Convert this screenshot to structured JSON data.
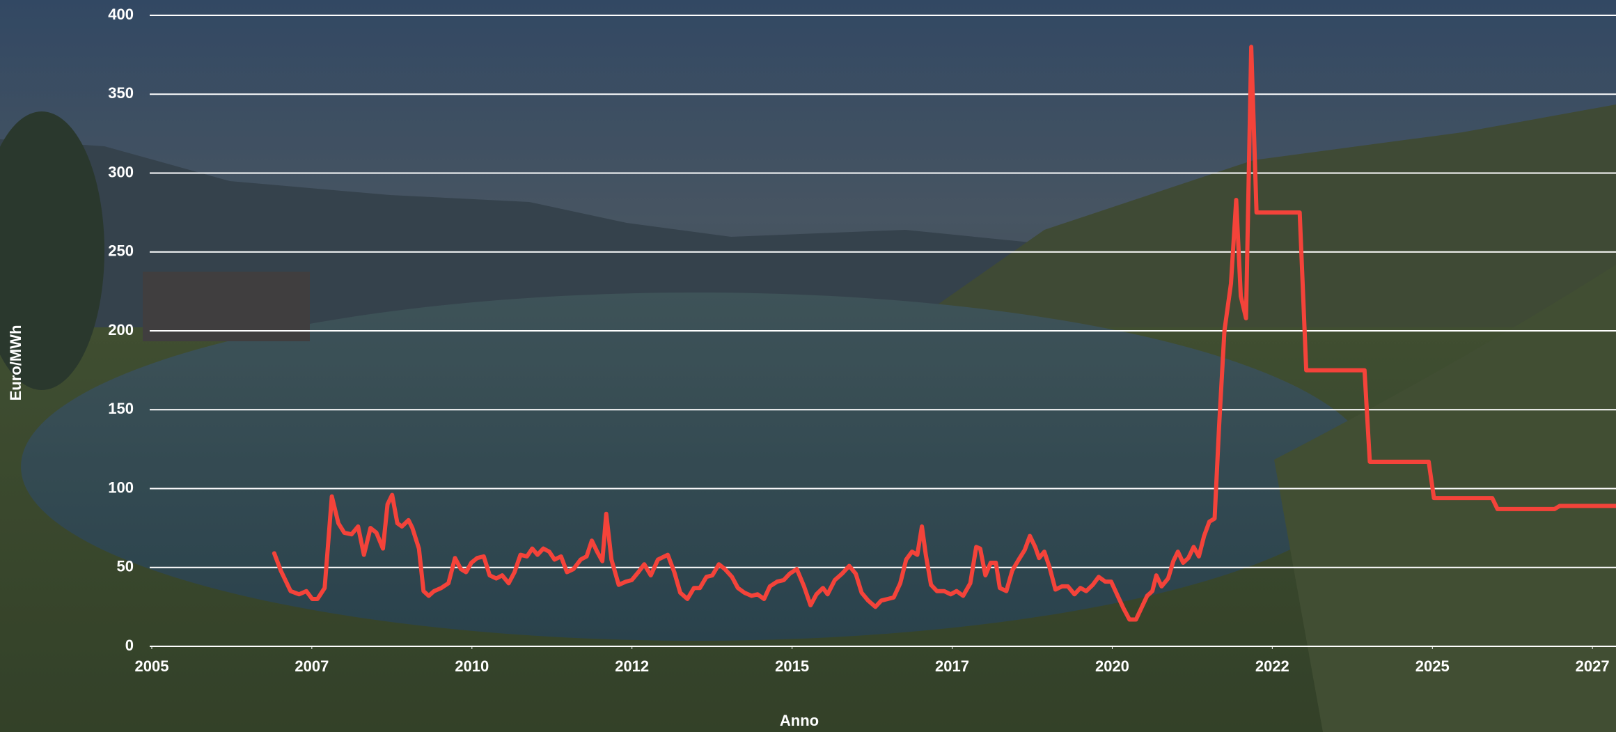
{
  "chart_data": {
    "type": "line",
    "x_label": "Anno",
    "y_label": "Euro/MWh",
    "color": "#f4433a",
    "grid": true,
    "xlim": [
      2005,
      2027.36
    ],
    "xticks": [
      {
        "value": 2005,
        "label": "2005"
      },
      {
        "value": 2007.444,
        "label": "2007"
      },
      {
        "value": 2009.889,
        "label": "2010"
      },
      {
        "value": 2012.333,
        "label": "2012"
      },
      {
        "value": 2014.778,
        "label": "2015"
      },
      {
        "value": 2017.222,
        "label": "2017"
      },
      {
        "value": 2019.667,
        "label": "2020"
      },
      {
        "value": 2022.111,
        "label": "2022"
      },
      {
        "value": 2024.556,
        "label": "2025"
      },
      {
        "value": 2027,
        "label": "2027"
      }
    ],
    "ylim": [
      0,
      400
    ],
    "yticks": [
      0,
      50,
      100,
      150,
      200,
      250,
      300,
      350,
      400
    ],
    "x": [
      2006.87,
      2006.97,
      2007.12,
      2007.25,
      2007.36,
      2007.45,
      2007.53,
      2007.64,
      2007.75,
      2007.85,
      2007.94,
      2008.05,
      2008.15,
      2008.24,
      2008.34,
      2008.43,
      2008.53,
      2008.6,
      2008.67,
      2008.75,
      2008.82,
      2008.92,
      2008.98,
      2009.08,
      2009.15,
      2009.23,
      2009.31,
      2009.42,
      2009.53,
      2009.63,
      2009.72,
      2009.8,
      2009.88,
      2009.97,
      2010.07,
      2010.16,
      2010.26,
      2010.35,
      2010.45,
      2010.54,
      2010.63,
      2010.73,
      2010.81,
      2010.89,
      2010.98,
      2011.07,
      2011.15,
      2011.25,
      2011.34,
      2011.44,
      2011.55,
      2011.64,
      2011.72,
      2011.8,
      2011.88,
      2011.94,
      2012.02,
      2012.13,
      2012.24,
      2012.33,
      2012.43,
      2012.52,
      2012.62,
      2012.73,
      2012.88,
      2012.98,
      2013.07,
      2013.18,
      2013.28,
      2013.37,
      2013.47,
      2013.56,
      2013.66,
      2013.75,
      2013.86,
      2013.95,
      2014.05,
      2014.16,
      2014.25,
      2014.35,
      2014.44,
      2014.55,
      2014.65,
      2014.74,
      2014.85,
      2014.96,
      2015.06,
      2015.15,
      2015.25,
      2015.32,
      2015.43,
      2015.54,
      2015.65,
      2015.75,
      2015.84,
      2015.94,
      2016.05,
      2016.14,
      2016.24,
      2016.33,
      2016.43,
      2016.52,
      2016.61,
      2016.69,
      2016.76,
      2016.82,
      2016.9,
      2016.99,
      2017.1,
      2017.2,
      2017.29,
      2017.39,
      2017.5,
      2017.59,
      2017.65,
      2017.73,
      2017.81,
      2017.89,
      2017.95,
      2018.05,
      2018.14,
      2018.24,
      2018.33,
      2018.41,
      2018.49,
      2018.55,
      2018.63,
      2018.71,
      2018.8,
      2018.9,
      2018.99,
      2019.09,
      2019.18,
      2019.27,
      2019.37,
      2019.46,
      2019.56,
      2019.65,
      2019.75,
      2019.84,
      2019.93,
      2020.03,
      2020.12,
      2020.2,
      2020.28,
      2020.34,
      2020.42,
      2020.52,
      2020.6,
      2020.67,
      2020.75,
      2020.83,
      2020.91,
      2020.99,
      2021.07,
      2021.15,
      2021.23,
      2021.3,
      2021.38,
      2021.48,
      2021.56,
      2021.63,
      2021.71,
      2021.79,
      2021.87,
      2021.96,
      2022.53,
      2022.63,
      2023.52,
      2023.6,
      2024.5,
      2024.58,
      2025.47,
      2025.55,
      2026.42,
      2026.5,
      2027.36
    ],
    "values": [
      59,
      48,
      35,
      33,
      35,
      30,
      30,
      37,
      95,
      78,
      72,
      71,
      76,
      58,
      75,
      72,
      62,
      90,
      96,
      78,
      76,
      80,
      75,
      62,
      35,
      32,
      35,
      37,
      40,
      56,
      49,
      47,
      53,
      56,
      57,
      45,
      43,
      45,
      40,
      47,
      58,
      57,
      62,
      58,
      62,
      60,
      55,
      57,
      47,
      49,
      55,
      57,
      67,
      60,
      54,
      84,
      55,
      39,
      41,
      42,
      47,
      52,
      45,
      55,
      58,
      47,
      34,
      30,
      37,
      37,
      44,
      45,
      52,
      49,
      44,
      37,
      34,
      32,
      33,
      30,
      38,
      41,
      42,
      46,
      49,
      38,
      26,
      33,
      37,
      33,
      42,
      46,
      51,
      46,
      34,
      29,
      25,
      29,
      30,
      31,
      40,
      55,
      60,
      58,
      76,
      58,
      39,
      35,
      35,
      33,
      35,
      32,
      40,
      63,
      62,
      45,
      53,
      53,
      37,
      35,
      48,
      55,
      61,
      70,
      63,
      56,
      60,
      50,
      36,
      38,
      38,
      33,
      37,
      35,
      39,
      44,
      41,
      41,
      32,
      24,
      17,
      17,
      25,
      32,
      35,
      45,
      38,
      43,
      54,
      60,
      53,
      56,
      63,
      57,
      70,
      79,
      81,
      140,
      200,
      230,
      283,
      222,
      208,
      380,
      275,
      275,
      275,
      175,
      175,
      117,
      117,
      94,
      94,
      87,
      87,
      89,
      89
    ]
  }
}
